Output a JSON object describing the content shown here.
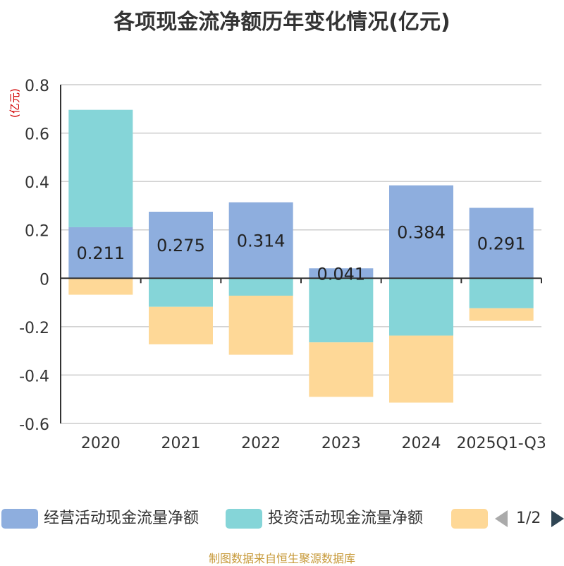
{
  "chart_data": {
    "type": "bar",
    "stacked": true,
    "title": "各项现金流净额历年变化情况(亿元)",
    "ylabel": "(亿元)",
    "xlabel": "",
    "ylim": [
      -0.6,
      0.8
    ],
    "yticks": [
      0.8,
      0.6,
      0.4,
      0.2,
      0,
      -0.2,
      -0.4,
      -0.6
    ],
    "ytick_labels": [
      "0.8",
      "0.6",
      "0.4",
      "0.2",
      "0",
      "-0.2",
      "-0.4",
      "-0.6"
    ],
    "grid": true,
    "categories": [
      "2020",
      "2021",
      "2022",
      "2023",
      "2024",
      "2025Q1-Q3"
    ],
    "series": [
      {
        "name": "经营活动现金流量净额",
        "color": "#8eaede",
        "values": [
          0.211,
          0.275,
          0.314,
          0.041,
          0.384,
          0.291
        ],
        "labels": [
          "0.211",
          "0.275",
          "0.314",
          "0.041",
          "0.384",
          "0.291"
        ]
      },
      {
        "name": "投资活动现金流量净额",
        "color": "#85d5d8",
        "values": [
          0.485,
          -0.118,
          -0.072,
          -0.265,
          -0.237,
          -0.124
        ]
      },
      {
        "name": "",
        "color": "#fed897",
        "values": [
          -0.068,
          -0.155,
          -0.244,
          -0.225,
          -0.277,
          -0.052
        ]
      }
    ]
  },
  "legend": {
    "page_text": "1/2"
  },
  "source_text": "制图数据来自恒生聚源数据库"
}
